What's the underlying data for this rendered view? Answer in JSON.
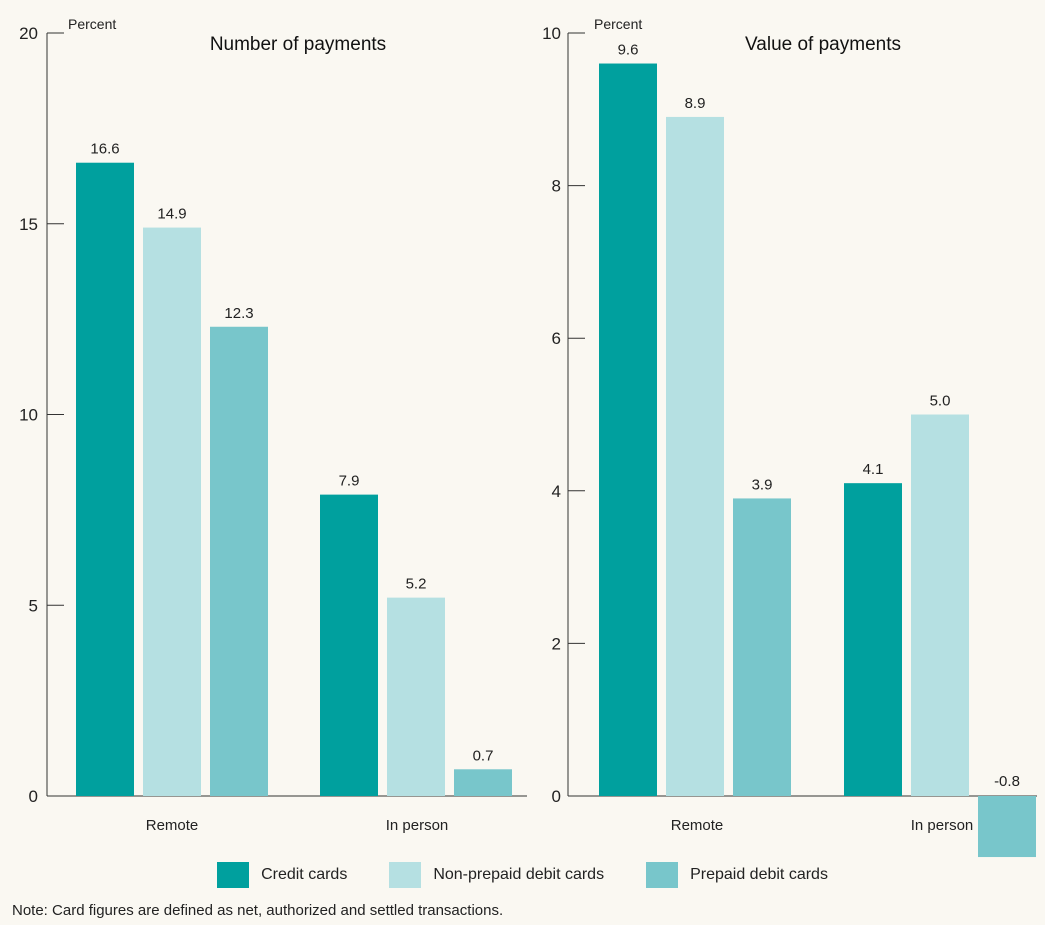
{
  "legend": {
    "items": [
      {
        "label": "Credit cards",
        "color": "#00a09e"
      },
      {
        "label": "Non-prepaid debit cards",
        "color": "#b5e0e2"
      },
      {
        "label": "Prepaid debit cards",
        "color": "#78c6cb"
      }
    ]
  },
  "note": "Note: Card figures are defined as net, authorized and settled transactions.",
  "chart_data": [
    {
      "type": "bar",
      "title": "Number of payments",
      "ylabel": "Percent",
      "ylim": [
        0,
        20
      ],
      "yticks": [
        0,
        5,
        10,
        15,
        20
      ],
      "grid": false,
      "categories": [
        "Remote",
        "In person"
      ],
      "series": [
        {
          "name": "Credit cards",
          "values": [
            16.6,
            7.9
          ],
          "labels": [
            "16.6",
            "7.9"
          ]
        },
        {
          "name": "Non-prepaid debit cards",
          "values": [
            14.9,
            5.2
          ],
          "labels": [
            "14.9",
            "5.2"
          ]
        },
        {
          "name": "Prepaid debit cards",
          "values": [
            12.3,
            0.7
          ],
          "labels": [
            "12.3",
            "0.7"
          ]
        }
      ]
    },
    {
      "type": "bar",
      "title": "Value of payments",
      "ylabel": "Percent",
      "ylim": [
        0,
        10
      ],
      "yticks": [
        0,
        2,
        4,
        6,
        8,
        10
      ],
      "grid": false,
      "categories": [
        "Remote",
        "In person"
      ],
      "series": [
        {
          "name": "Credit cards",
          "values": [
            9.6,
            4.1
          ],
          "labels": [
            "9.6",
            "4.1"
          ]
        },
        {
          "name": "Non-prepaid debit cards",
          "values": [
            8.9,
            5.0
          ],
          "labels": [
            "8.9",
            "5.0"
          ]
        },
        {
          "name": "Prepaid debit cards",
          "values": [
            3.9,
            -0.8
          ],
          "labels": [
            "3.9",
            "-0.8"
          ]
        }
      ]
    }
  ]
}
